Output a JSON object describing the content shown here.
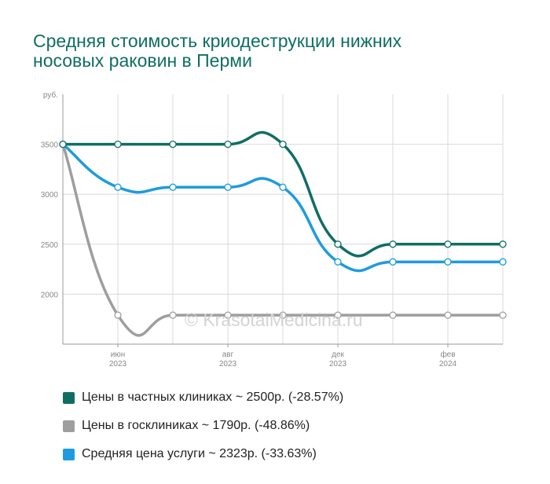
{
  "chart_data": {
    "type": "line",
    "title": "Средняя стоимость криодеструкции нижних носовых раковин в Перми",
    "ylabel": "руб.",
    "ylim": [
      1500,
      4000
    ],
    "y_ticks": [
      "2000",
      "2500",
      "3000",
      "3500"
    ],
    "y_tick_values": [
      2000,
      2500,
      3000,
      3500
    ],
    "x_count": 9,
    "x_ticks": [
      {
        "index": 1,
        "month": "июн",
        "year": "2023"
      },
      {
        "index": 3,
        "month": "авг",
        "year": "2023"
      },
      {
        "index": 5,
        "month": "дек",
        "year": "2023"
      },
      {
        "index": 7,
        "month": "фев",
        "year": "2024"
      }
    ],
    "series": [
      {
        "name": "Цены в частных клиниках ~ 2500р. (-28.57%)",
        "color": "#0f6e64",
        "values": [
          3500,
          3500,
          3500,
          3500,
          3500,
          2500,
          2500,
          2500,
          2500
        ]
      },
      {
        "name": "Цены в госклиниках ~ 1790р. (-48.86%)",
        "color": "#9e9e9e",
        "values": [
          3500,
          1790,
          1790,
          1790,
          1790,
          1790,
          1790,
          1790,
          1790
        ]
      },
      {
        "name": "Средняя цена услуги ~ 2323р. (-33.63%)",
        "color": "#1e9be0",
        "values": [
          3500,
          3070,
          3070,
          3070,
          3070,
          2323,
          2323,
          2323,
          2323
        ]
      }
    ],
    "grid": true,
    "legend": "bottom-left"
  },
  "watermark": "© KrasotaiMedicina.ru"
}
